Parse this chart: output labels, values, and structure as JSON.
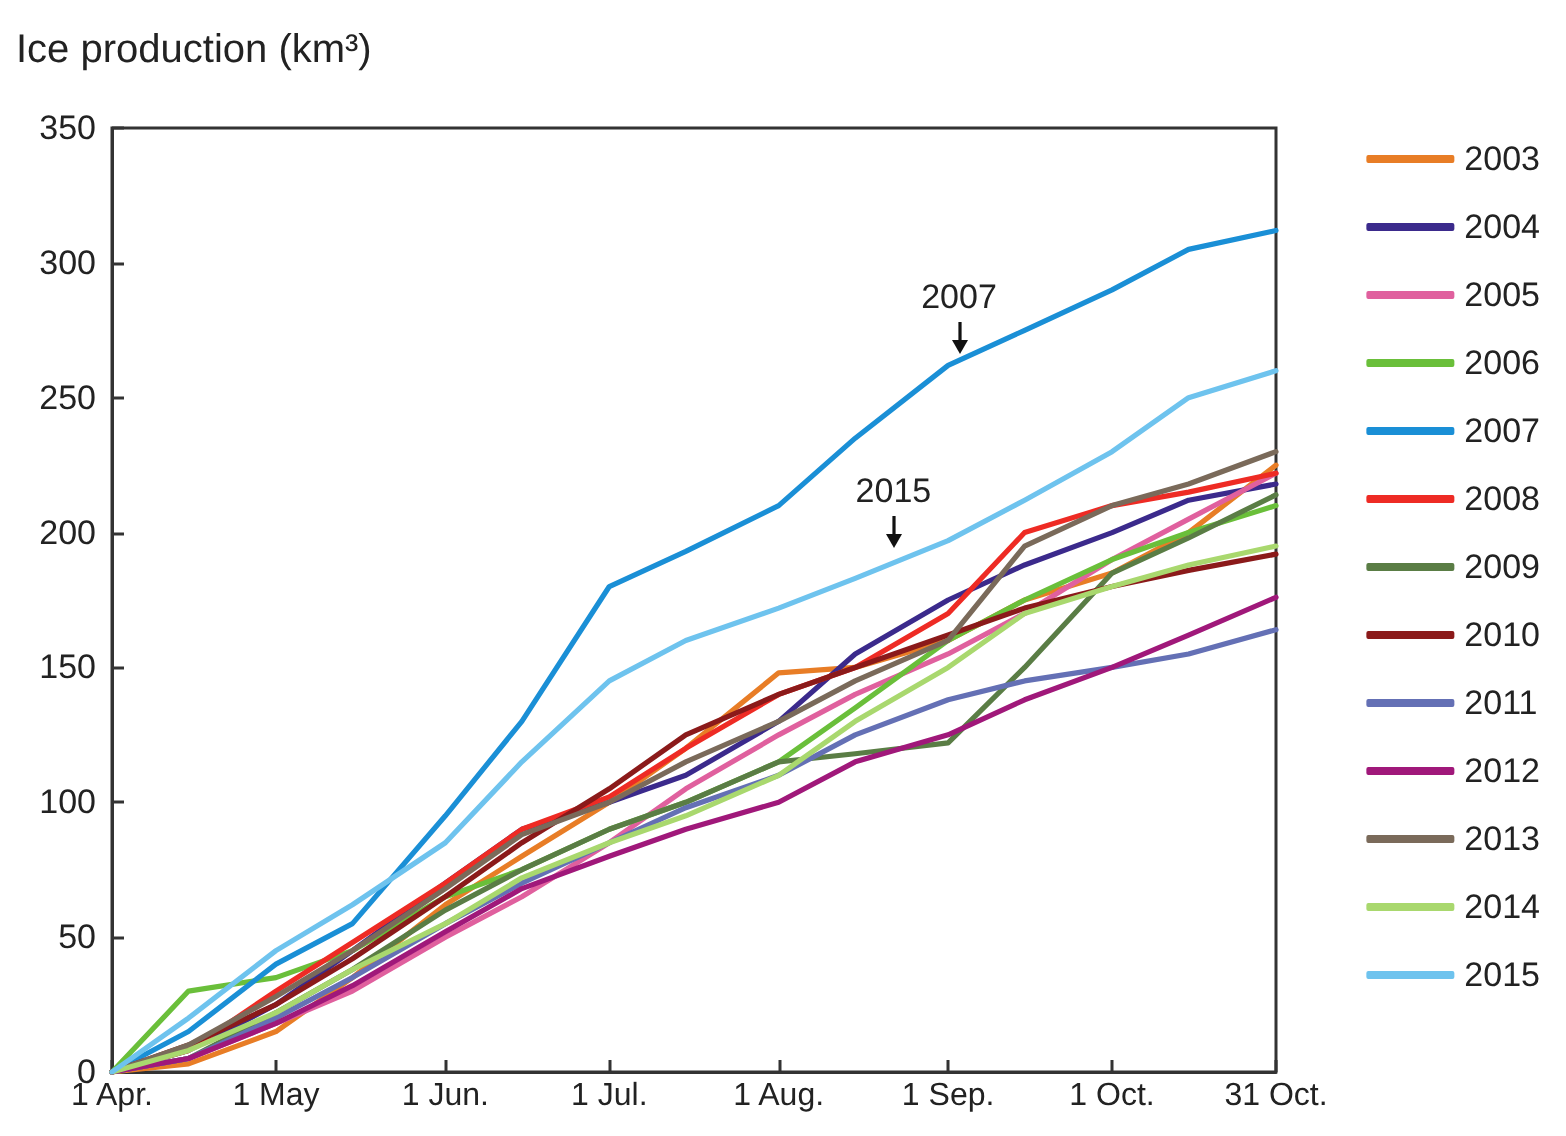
{
  "chart_data": {
    "type": "line",
    "ylabel": "Ice production (km³)",
    "x": [
      "--04-01",
      "--04-15",
      "--05-01",
      "--05-15",
      "--06-01",
      "--06-15",
      "--07-01",
      "--07-15",
      "--08-01",
      "--08-15",
      "--09-01",
      "--09-15",
      "--10-01",
      "--10-15",
      "--10-31"
    ],
    "series": [
      {
        "name": "2003",
        "color": "#e87d26",
        "values": [
          0,
          3,
          15,
          35,
          62,
          80,
          100,
          120,
          148,
          150,
          160,
          175,
          185,
          200,
          225
        ]
      },
      {
        "name": "2004",
        "color": "#3b2a8c",
        "values": [
          0,
          8,
          25,
          45,
          70,
          90,
          100,
          110,
          130,
          155,
          175,
          188,
          200,
          212,
          218
        ]
      },
      {
        "name": "2005",
        "color": "#e0609e",
        "values": [
          0,
          5,
          18,
          30,
          50,
          65,
          85,
          105,
          125,
          140,
          155,
          170,
          190,
          205,
          222
        ]
      },
      {
        "name": "2006",
        "color": "#6abf3a",
        "values": [
          0,
          30,
          35,
          45,
          65,
          75,
          90,
          100,
          115,
          135,
          160,
          175,
          190,
          200,
          210
        ]
      },
      {
        "name": "2007",
        "color": "#1a8fd6",
        "values": [
          0,
          15,
          40,
          55,
          95,
          130,
          180,
          193,
          210,
          235,
          262,
          275,
          290,
          305,
          312
        ]
      },
      {
        "name": "2008",
        "color": "#ee2b24",
        "values": [
          0,
          8,
          30,
          48,
          70,
          90,
          102,
          120,
          140,
          150,
          170,
          200,
          210,
          215,
          222
        ]
      },
      {
        "name": "2009",
        "color": "#5a7d45",
        "values": [
          0,
          5,
          22,
          38,
          60,
          75,
          90,
          100,
          115,
          118,
          122,
          150,
          185,
          198,
          214
        ]
      },
      {
        "name": "2010",
        "color": "#8b1a1a",
        "values": [
          0,
          10,
          25,
          42,
          65,
          85,
          105,
          125,
          140,
          150,
          162,
          172,
          180,
          186,
          192
        ]
      },
      {
        "name": "2011",
        "color": "#6470b5",
        "values": [
          0,
          5,
          20,
          35,
          55,
          70,
          85,
          98,
          110,
          125,
          138,
          145,
          150,
          155,
          164
        ]
      },
      {
        "name": "2012",
        "color": "#a0187a",
        "values": [
          0,
          5,
          18,
          32,
          52,
          68,
          80,
          90,
          100,
          115,
          125,
          138,
          150,
          162,
          176
        ]
      },
      {
        "name": "2013",
        "color": "#7a6a5a",
        "values": [
          0,
          10,
          28,
          45,
          68,
          88,
          100,
          115,
          130,
          145,
          160,
          195,
          210,
          218,
          230
        ]
      },
      {
        "name": "2014",
        "color": "#a9d86e",
        "values": [
          0,
          8,
          22,
          38,
          55,
          72,
          85,
          95,
          110,
          130,
          150,
          170,
          180,
          188,
          195
        ]
      },
      {
        "name": "2015",
        "color": "#6ec3ee",
        "values": [
          0,
          20,
          45,
          62,
          85,
          115,
          145,
          160,
          172,
          183,
          197,
          212,
          230,
          250,
          260
        ]
      }
    ],
    "xlim": [
      "--04-01",
      "--10-31"
    ],
    "xticks": [
      {
        "value": "--04-01",
        "label": "1 Apr."
      },
      {
        "value": "--05-01",
        "label": "1 May"
      },
      {
        "value": "--06-01",
        "label": "1 Jun."
      },
      {
        "value": "--07-01",
        "label": "1 Jul."
      },
      {
        "value": "--08-01",
        "label": "1 Aug."
      },
      {
        "value": "--09-01",
        "label": "1 Sep."
      },
      {
        "value": "--10-01",
        "label": "1 Oct."
      },
      {
        "value": "--10-31",
        "label": "31 Oct."
      }
    ],
    "ylim": [
      0,
      350
    ],
    "yticks": [
      0,
      50,
      100,
      150,
      200,
      250,
      300,
      350
    ],
    "annotations": [
      {
        "text": "2007",
        "x": "--09-03",
        "y": 262
      },
      {
        "text": "2015",
        "x": "--08-22",
        "y": 190
      }
    ],
    "grid": false,
    "legend": "right",
    "marker": "none",
    "line_style": "solid"
  }
}
